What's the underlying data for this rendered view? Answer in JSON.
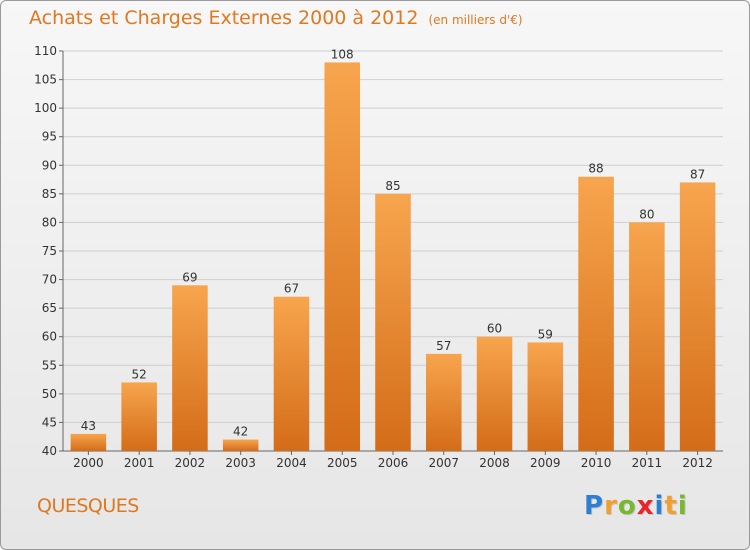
{
  "header": {
    "title": "Achats et Charges Externes 2000 à 2012",
    "unit": "(en milliers d'€)"
  },
  "commune": "QUESQUES",
  "logo": {
    "letters": [
      "P",
      "r",
      "o",
      "x",
      "i",
      "t",
      "i"
    ],
    "colors": [
      "#2c7fd1",
      "#f0a030",
      "#78b830",
      "#e8252a",
      "#2c7fd1",
      "#f0a030",
      "#78b830"
    ]
  },
  "colors": {
    "bar_light": "#f7a54e",
    "bar_dark": "#d46c18",
    "title": "#e07820",
    "grid": "#cfcfcf"
  },
  "chart_data": {
    "type": "bar",
    "title": "Achats et Charges Externes 2000 à 2012",
    "subtitle": "(en milliers d'€)",
    "categories": [
      "2000",
      "2001",
      "2002",
      "2003",
      "2004",
      "2005",
      "2006",
      "2007",
      "2008",
      "2009",
      "2010",
      "2011",
      "2012"
    ],
    "values": [
      43,
      52,
      69,
      42,
      67,
      108,
      85,
      57,
      60,
      59,
      88,
      80,
      87
    ],
    "ylim": [
      40,
      110
    ],
    "yticks": [
      40,
      45,
      50,
      55,
      60,
      65,
      70,
      75,
      80,
      85,
      90,
      95,
      100,
      105,
      110
    ],
    "grid": true
  }
}
